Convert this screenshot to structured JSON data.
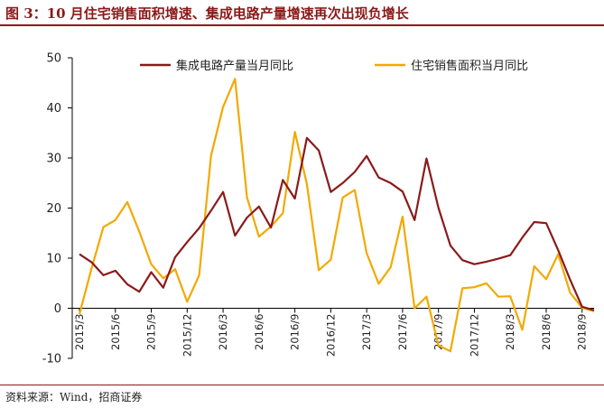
{
  "header": {
    "title": "图 3：10 月住宅销售面积增速、集成电路产量增速再次出现负增长"
  },
  "footer": {
    "source": "资料来源：Wind，招商证券"
  },
  "colors": {
    "series1": "#8B1A1A",
    "series2": "#F2A900",
    "title": "#8B1A1A"
  },
  "chart_data": {
    "type": "line",
    "title": "",
    "xlabel": "",
    "ylabel": "",
    "ylim": [
      -10,
      50
    ],
    "yticks": [
      -10,
      0,
      10,
      20,
      30,
      40,
      50
    ],
    "x_ticks": [
      "2015/3",
      "2015/6",
      "2015/9",
      "2015/12",
      "2016/3",
      "2016/6",
      "2016/9",
      "2016/12",
      "2017/3",
      "2017/6",
      "2017/9",
      "2017/12",
      "2018/3",
      "2018/6",
      "2018/9"
    ],
    "x": [
      "2015/3",
      "2015/4",
      "2015/5",
      "2015/6",
      "2015/7",
      "2015/8",
      "2015/9",
      "2015/10",
      "2015/11",
      "2015/12",
      "2016/1",
      "2016/2",
      "2016/3",
      "2016/4",
      "2016/5",
      "2016/6",
      "2016/7",
      "2016/8",
      "2016/9",
      "2016/10",
      "2016/11",
      "2016/12",
      "2017/1",
      "2017/2",
      "2017/3",
      "2017/4",
      "2017/5",
      "2017/6",
      "2017/7",
      "2017/8",
      "2017/9",
      "2017/10",
      "2017/11",
      "2017/12",
      "2018/1",
      "2018/2",
      "2018/3",
      "2018/4",
      "2018/5",
      "2018/6",
      "2018/7",
      "2018/8",
      "2018/9",
      "2018/10"
    ],
    "legend_position": "top",
    "grid": false,
    "series": [
      {
        "name": "集成电路产量当月同比",
        "color": "#8B1A1A",
        "values": [
          10.8,
          9.2,
          6.6,
          7.5,
          4.8,
          3.3,
          7.2,
          4.1,
          10.2,
          13.2,
          16.0,
          19.5,
          23.2,
          14.5,
          18.1,
          20.3,
          16.1,
          25.6,
          21.9,
          34.0,
          31.5,
          23.2,
          25.0,
          27.2,
          30.4,
          26.1,
          25.0,
          23.3,
          17.6,
          29.9,
          20.0,
          12.5,
          9.6,
          8.8,
          9.3,
          9.9,
          10.6,
          14.1,
          17.2,
          17.0,
          11.6,
          5.7,
          0.3,
          -0.4
        ]
      },
      {
        "name": "住宅销售面积当月同比",
        "color": "#F2A900",
        "values": [
          -1.2,
          7.9,
          16.2,
          17.6,
          21.2,
          15.3,
          8.8,
          6.0,
          7.8,
          1.3,
          6.6,
          30.5,
          40.2,
          45.8,
          22.1,
          14.3,
          16.3,
          19.0,
          35.2,
          24.8,
          7.6,
          9.7,
          22.1,
          23.6,
          11.0,
          4.9,
          8.2,
          18.3,
          0.0,
          2.3,
          -7.4,
          -8.6,
          4.0,
          4.2,
          5.0,
          2.3,
          2.4,
          -4.3,
          8.4,
          5.8,
          10.8,
          3.1,
          0.1,
          -0.6
        ]
      }
    ]
  }
}
